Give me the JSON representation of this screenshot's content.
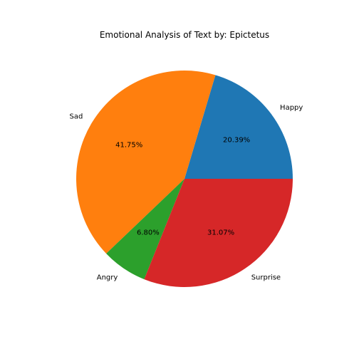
{
  "chart_data": {
    "type": "pie",
    "title": "Emotional Analysis of Text by: Epictetus",
    "categories": [
      "Happy",
      "Sad",
      "Angry",
      "Surprise"
    ],
    "values": [
      20.39,
      41.75,
      6.8,
      31.07
    ],
    "value_labels": [
      "20.39%",
      "41.75%",
      "6.80%",
      "31.07%"
    ],
    "colors": [
      "#1f77b4",
      "#ff7f0e",
      "#2ca02c",
      "#d62728"
    ],
    "start_angle_deg": 0,
    "direction": "counterclockwise",
    "legend": "none"
  }
}
